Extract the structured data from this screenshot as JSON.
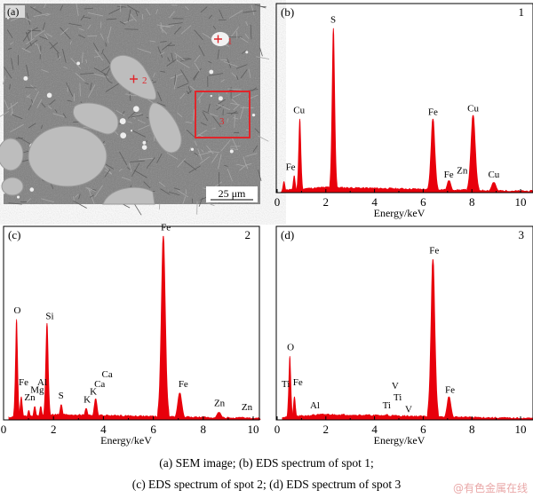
{
  "sem": {
    "panel_label": "(a)",
    "spot_labels": [
      "1",
      "2",
      "3"
    ],
    "scale_bar": "25 μm",
    "marker_color": "#e0262b"
  },
  "chart_data": [
    {
      "type": "area",
      "panel_label": "(b)",
      "spot": "1",
      "xlabel": "Energy/keV",
      "ylabel": "",
      "xlim": [
        0,
        10.5
      ],
      "ylim": [
        0,
        100
      ],
      "xticks": [
        "0",
        "2",
        "4",
        "6",
        "8",
        "10"
      ],
      "color": "#e8000b",
      "peaks": [
        {
          "x": 0.28,
          "y": 6
        },
        {
          "x": 0.7,
          "y": 9
        },
        {
          "x": 0.93,
          "y": 39
        },
        {
          "x": 2.31,
          "y": 87
        },
        {
          "x": 6.4,
          "y": 39
        },
        {
          "x": 7.06,
          "y": 6.5
        },
        {
          "x": 8.05,
          "y": 41
        },
        {
          "x": 8.9,
          "y": 5.5
        }
      ],
      "labels": [
        {
          "text": "Fe",
          "x": 0.55,
          "y": 12
        },
        {
          "text": "Cu",
          "x": 0.9,
          "y": 42
        },
        {
          "text": "S",
          "x": 2.3,
          "y": 90
        },
        {
          "text": "Fe",
          "x": 6.4,
          "y": 41
        },
        {
          "text": "Fe",
          "x": 7.05,
          "y": 8
        },
        {
          "text": "Zn",
          "x": 7.6,
          "y": 10
        },
        {
          "text": "Cu",
          "x": 8.05,
          "y": 43
        },
        {
          "text": "Cu",
          "x": 8.9,
          "y": 8
        }
      ]
    },
    {
      "type": "area",
      "panel_label": "(c)",
      "spot": "2",
      "xlabel": "Energy/keV",
      "ylabel": "",
      "xlim": [
        0,
        10.3
      ],
      "ylim": [
        0,
        100
      ],
      "xticks": [
        "0",
        "2",
        "4",
        "6",
        "8",
        "10"
      ],
      "color": "#e8000b",
      "peaks": [
        {
          "x": 0.52,
          "y": 52
        },
        {
          "x": 0.71,
          "y": 12
        },
        {
          "x": 1.01,
          "y": 5
        },
        {
          "x": 1.25,
          "y": 7
        },
        {
          "x": 1.49,
          "y": 7
        },
        {
          "x": 1.74,
          "y": 50
        },
        {
          "x": 2.31,
          "y": 8
        },
        {
          "x": 3.31,
          "y": 6
        },
        {
          "x": 3.69,
          "y": 11
        },
        {
          "x": 6.4,
          "y": 95
        },
        {
          "x": 7.06,
          "y": 14
        },
        {
          "x": 8.63,
          "y": 4
        },
        {
          "x": 9.57,
          "y": 1.5
        }
      ],
      "labels": [
        {
          "text": "O",
          "x": 0.55,
          "y": 55
        },
        {
          "text": "Fe",
          "x": 0.8,
          "y": 18
        },
        {
          "text": "Zn",
          "x": 1.05,
          "y": 10
        },
        {
          "text": "Mg",
          "x": 1.35,
          "y": 14
        },
        {
          "text": "Al",
          "x": 1.55,
          "y": 18
        },
        {
          "text": "Si",
          "x": 1.85,
          "y": 52
        },
        {
          "text": "S",
          "x": 2.3,
          "y": 11
        },
        {
          "text": "K",
          "x": 3.35,
          "y": 9
        },
        {
          "text": "K",
          "x": 3.6,
          "y": 13
        },
        {
          "text": "Ca",
          "x": 3.85,
          "y": 17
        },
        {
          "text": "Ca",
          "x": 4.15,
          "y": 22
        },
        {
          "text": "Fe",
          "x": 6.5,
          "y": 98
        },
        {
          "text": "Fe",
          "x": 7.2,
          "y": 17
        },
        {
          "text": "Zn",
          "x": 8.65,
          "y": 7
        },
        {
          "text": "Zn",
          "x": 9.75,
          "y": 5
        }
      ]
    },
    {
      "type": "area",
      "panel_label": "(d)",
      "spot": "3",
      "xlabel": "Energy/keV",
      "ylabel": "",
      "xlim": [
        0,
        10.5
      ],
      "ylim": [
        0,
        100
      ],
      "xticks": [
        "0",
        "2",
        "4",
        "6",
        "8",
        "10"
      ],
      "color": "#e8000b",
      "peaks": [
        {
          "x": 0.52,
          "y": 33
        },
        {
          "x": 0.71,
          "y": 12
        },
        {
          "x": 1.49,
          "y": 3
        },
        {
          "x": 4.51,
          "y": 3
        },
        {
          "x": 6.4,
          "y": 83
        },
        {
          "x": 7.06,
          "y": 12
        }
      ],
      "labels": [
        {
          "text": "O",
          "x": 0.55,
          "y": 36
        },
        {
          "text": "Ti",
          "x": 0.35,
          "y": 17
        },
        {
          "text": "Fe",
          "x": 0.85,
          "y": 18
        },
        {
          "text": "Al",
          "x": 1.55,
          "y": 6
        },
        {
          "text": "Ti",
          "x": 4.5,
          "y": 6
        },
        {
          "text": "V",
          "x": 4.85,
          "y": 16
        },
        {
          "text": "Ti",
          "x": 4.95,
          "y": 10
        },
        {
          "text": "V",
          "x": 5.4,
          "y": 4
        },
        {
          "text": "Fe",
          "x": 6.45,
          "y": 86
        },
        {
          "text": "Fe",
          "x": 7.1,
          "y": 14
        }
      ]
    }
  ],
  "caption": {
    "line1": "(a) SEM image; (b) EDS spectrum of spot 1;",
    "line2": "(c) EDS spectrum of spot 2; (d) EDS spectrum of spot 3"
  },
  "watermark": "@有色金属在线"
}
